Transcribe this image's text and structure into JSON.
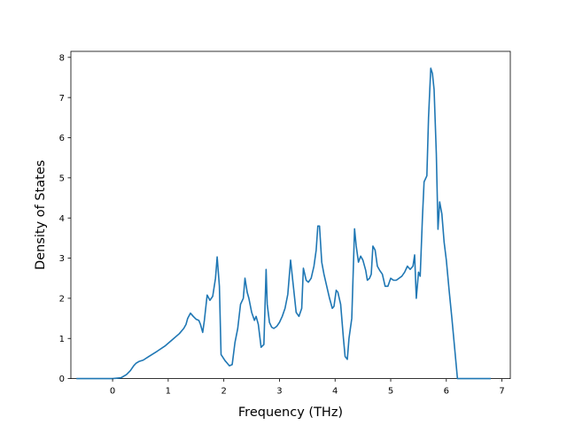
{
  "chart_data": {
    "type": "line",
    "title": "",
    "xlabel": "Frequency (THz)",
    "ylabel": "Density of States",
    "xlim": [
      -0.75,
      7.15
    ],
    "ylim": [
      0,
      8.15
    ],
    "xticks": [
      0,
      1,
      2,
      3,
      4,
      5,
      6,
      7
    ],
    "yticks": [
      0,
      1,
      2,
      3,
      4,
      5,
      6,
      7,
      8
    ],
    "x_tick_labels": [
      "0",
      "1",
      "2",
      "3",
      "4",
      "5",
      "6",
      "7"
    ],
    "y_tick_labels": [
      "0",
      "1",
      "2",
      "3",
      "4",
      "5",
      "6",
      "7",
      "8"
    ],
    "grid": false,
    "legend": "none",
    "series": [
      {
        "color": "#1f77b4",
        "x": [
          -0.65,
          -0.2,
          0.0,
          0.15,
          0.25,
          0.32,
          0.38,
          0.42,
          0.48,
          0.55,
          0.65,
          0.8,
          0.95,
          1.1,
          1.2,
          1.28,
          1.32,
          1.35,
          1.4,
          1.45,
          1.5,
          1.55,
          1.58,
          1.62,
          1.65,
          1.7,
          1.75,
          1.8,
          1.85,
          1.88,
          1.92,
          1.95,
          2.02,
          2.1,
          2.15,
          2.2,
          2.25,
          2.3,
          2.35,
          2.38,
          2.42,
          2.45,
          2.5,
          2.55,
          2.58,
          2.62,
          2.67,
          2.72,
          2.76,
          2.78,
          2.82,
          2.86,
          2.9,
          2.95,
          3.0,
          3.05,
          3.1,
          3.15,
          3.2,
          3.25,
          3.3,
          3.35,
          3.4,
          3.43,
          3.48,
          3.52,
          3.57,
          3.62,
          3.66,
          3.69,
          3.72,
          3.76,
          3.8,
          3.85,
          3.9,
          3.95,
          3.98,
          4.02,
          4.05,
          4.1,
          4.15,
          4.18,
          4.22,
          4.25,
          4.3,
          4.35,
          4.38,
          4.42,
          4.46,
          4.5,
          4.55,
          4.58,
          4.62,
          4.65,
          4.68,
          4.72,
          4.76,
          4.8,
          4.85,
          4.9,
          4.95,
          5.0,
          5.05,
          5.1,
          5.15,
          5.2,
          5.25,
          5.3,
          5.35,
          5.4,
          5.43,
          5.46,
          5.5,
          5.53,
          5.57,
          5.6,
          5.65,
          5.68,
          5.72,
          5.75,
          5.78,
          5.82,
          5.85,
          5.88,
          5.92,
          5.96,
          6.0,
          6.05,
          6.1,
          6.15,
          6.2,
          6.5,
          6.8
        ],
        "y": [
          0.0,
          0.0,
          0.0,
          0.02,
          0.1,
          0.2,
          0.32,
          0.38,
          0.43,
          0.46,
          0.55,
          0.68,
          0.82,
          1.0,
          1.12,
          1.25,
          1.35,
          1.5,
          1.63,
          1.55,
          1.48,
          1.45,
          1.35,
          1.15,
          1.45,
          2.08,
          1.95,
          2.05,
          2.5,
          3.03,
          2.3,
          0.6,
          0.45,
          0.32,
          0.35,
          0.9,
          1.25,
          1.85,
          2.0,
          2.5,
          2.15,
          2.0,
          1.65,
          1.45,
          1.55,
          1.35,
          0.78,
          0.85,
          2.72,
          1.85,
          1.4,
          1.28,
          1.25,
          1.3,
          1.4,
          1.55,
          1.75,
          2.1,
          2.95,
          2.3,
          1.65,
          1.55,
          1.75,
          2.75,
          2.45,
          2.4,
          2.5,
          2.8,
          3.2,
          3.8,
          3.8,
          2.9,
          2.6,
          2.3,
          2.0,
          1.75,
          1.8,
          2.2,
          2.15,
          1.85,
          1.0,
          0.55,
          0.48,
          1.0,
          1.5,
          3.73,
          3.3,
          2.9,
          3.05,
          2.95,
          2.7,
          2.45,
          2.5,
          2.6,
          3.3,
          3.2,
          2.8,
          2.7,
          2.6,
          2.3,
          2.3,
          2.5,
          2.45,
          2.45,
          2.5,
          2.55,
          2.65,
          2.8,
          2.72,
          2.8,
          3.08,
          2.0,
          2.65,
          2.55,
          4.0,
          4.9,
          5.05,
          6.5,
          7.73,
          7.6,
          7.2,
          5.6,
          3.72,
          4.4,
          4.1,
          3.4,
          2.95,
          2.2,
          1.5,
          0.75,
          0.0,
          0.0,
          0.0
        ]
      }
    ]
  }
}
